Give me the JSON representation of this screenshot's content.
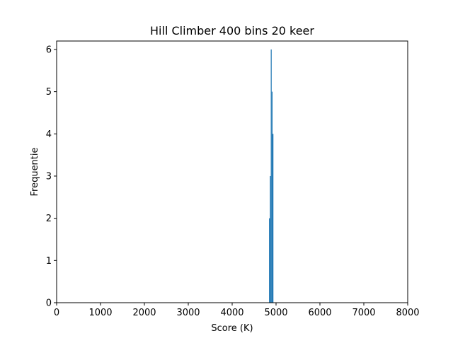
{
  "chart_data": {
    "type": "bar",
    "title": "Hill Climber 400 bins 20 keer",
    "xlabel": "Score (K)",
    "ylabel": "Frequentie",
    "xlim": [
      0,
      8000
    ],
    "ylim": [
      0,
      6.2
    ],
    "xticks": [
      0,
      1000,
      2000,
      3000,
      4000,
      5000,
      6000,
      7000,
      8000
    ],
    "yticks": [
      0,
      1,
      2,
      3,
      4,
      5,
      6
    ],
    "bin_width": 20,
    "bins": [
      {
        "x0": 4840,
        "x1": 4860,
        "count": 2
      },
      {
        "x0": 4860,
        "x1": 4880,
        "count": 3
      },
      {
        "x0": 4880,
        "x1": 4900,
        "count": 6
      },
      {
        "x0": 4900,
        "x1": 4920,
        "count": 5
      },
      {
        "x0": 4920,
        "x1": 4940,
        "count": 4
      }
    ],
    "bar_color": "#1f77b4",
    "grid": false,
    "legend": "none"
  }
}
